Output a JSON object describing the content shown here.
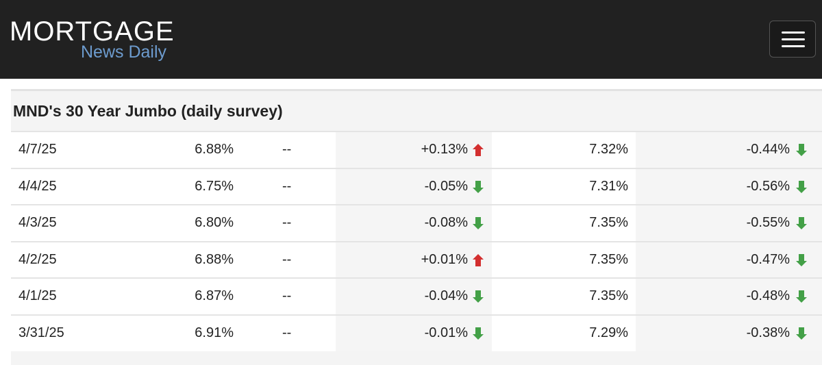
{
  "header": {
    "logo_title": "MORTGAGE",
    "logo_subtitle": "News Daily"
  },
  "table": {
    "title": "MND's 30 Year Jumbo (daily survey)",
    "rows": [
      [
        "4/7/25",
        "6.88%",
        "--",
        "+0.13%",
        "7.32%",
        "-0.44%"
      ],
      [
        "4/4/25",
        "6.75%",
        "--",
        "-0.05%",
        "7.31%",
        "-0.56%"
      ],
      [
        "4/3/25",
        "6.80%",
        "--",
        "-0.08%",
        "7.35%",
        "-0.55%"
      ],
      [
        "4/2/25",
        "6.88%",
        "--",
        "+0.01%",
        "7.35%",
        "-0.47%"
      ],
      [
        "4/1/25",
        "6.87%",
        "--",
        "-0.04%",
        "7.35%",
        "-0.48%"
      ],
      [
        "3/31/25",
        "6.91%",
        "--",
        "-0.01%",
        "7.29%",
        "-0.38%"
      ]
    ]
  }
}
